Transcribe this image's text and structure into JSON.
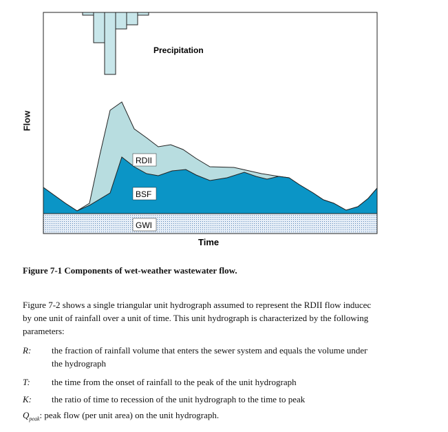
{
  "figure": {
    "ylabel": "Flow",
    "xlabel": "Time",
    "labels": {
      "precipitation": "Precipitation",
      "rdii": "RDII",
      "bsf": "BSF",
      "gwi": "GWI"
    },
    "colors": {
      "rdii": "#b8dde0",
      "bsf": "#0b95c6",
      "gwi_fill": "#e6eef7",
      "gwi_dots": "#5a86b8",
      "precip": "#c8e6ea"
    }
  },
  "caption": "Figure 7-1 Components of wet-weather wastewater flow.",
  "body": {
    "intro": [
      "Figure 7-2 shows a single triangular unit hydrograph assumed to represent the RDII flow inducec",
      "by one unit of rainfall over a unit of time. This unit hydrograph is characterized by the following",
      "parameters:"
    ],
    "params": [
      {
        "symbol": "R:",
        "lines": [
          "the fraction of rainfall volume that enters the sewer system and equals the volume undeг",
          "the hydrograph"
        ]
      },
      {
        "symbol": "T:",
        "lines": [
          "the time from the onset of rainfall to the peak of the unit hydrograph"
        ]
      },
      {
        "symbol": "K:",
        "lines": [
          "the ratio of time to recession of the unit hydrograph to the time to peak"
        ]
      }
    ],
    "qpeak_symbol": "Q",
    "qpeak_sub": "peak",
    "qpeak_text": ": peak flow (per unit area) on the unit hydrograph."
  }
}
